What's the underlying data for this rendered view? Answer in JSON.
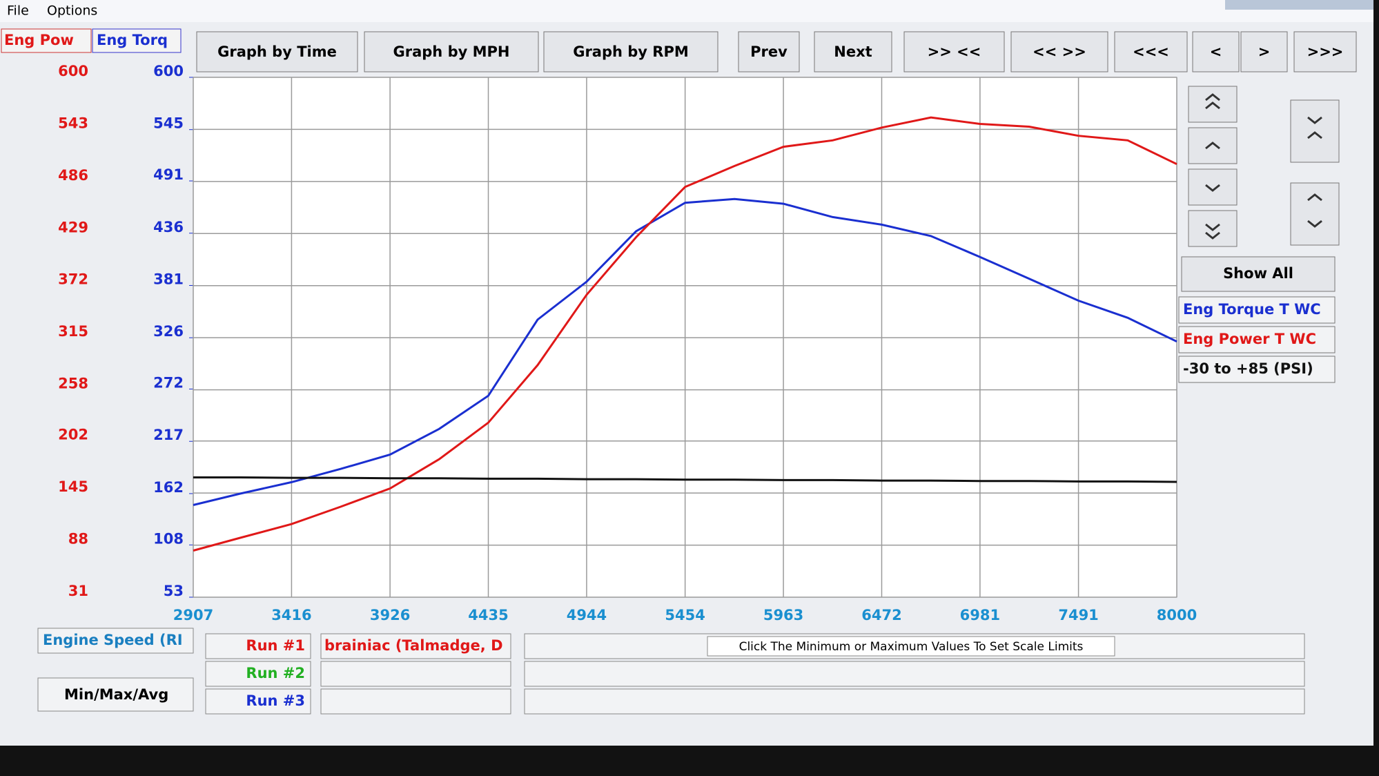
{
  "menu": [
    "File",
    "Options"
  ],
  "toolbar": [
    "Graph by Time",
    "Graph by MPH",
    "Graph by RPM",
    "Prev",
    "Next",
    ">> <<",
    "<< >>",
    "<<<",
    "<",
    ">",
    ">>>"
  ],
  "side_panel": {
    "button": "Show All"
  },
  "bottom": {
    "x_channel": "Engine Speed (RI",
    "summary_button": "Min/Max/Avg",
    "runs": [
      {
        "label": "Run #1",
        "color": "#e01818",
        "file": "brainiac (Talmadge, D"
      },
      {
        "label": "Run #2",
        "color": "#22b022"
      },
      {
        "label": "Run #3",
        "color": "#1a2fd0"
      }
    ],
    "status": "Click The Minimum or Maximum Values To Set Scale Limits"
  },
  "chart_data": {
    "type": "line",
    "y_label": "Eng Pow",
    "y2_label": "Eng Torq",
    "x": [
      2907,
      3150,
      3416,
      3670,
      3926,
      4180,
      4435,
      4690,
      4944,
      5200,
      5454,
      5710,
      5963,
      6218,
      6472,
      6727,
      6981,
      7236,
      7491,
      7746,
      8000
    ],
    "xlim": [
      2907,
      8000
    ],
    "xticks": [
      2907,
      3416,
      3926,
      4435,
      4944,
      5454,
      5963,
      6472,
      6981,
      7491,
      8000
    ],
    "ylim": [
      31,
      600
    ],
    "yticks": [
      31,
      88,
      145,
      202,
      258,
      315,
      372,
      429,
      486,
      543,
      600
    ],
    "y2lim": [
      53,
      600
    ],
    "y2ticks": [
      53,
      108,
      162,
      217,
      272,
      326,
      381,
      436,
      491,
      545,
      600
    ],
    "y3lim": [
      -30,
      85
    ],
    "grid": true,
    "series": [
      {
        "name": "Eng Torque T WC",
        "color": "#1a2fd0",
        "axis": "y2",
        "values": [
          150,
          162,
          174,
          188,
          203,
          230,
          265,
          345,
          385,
          438,
          468,
          472,
          467,
          453,
          445,
          433,
          411,
          388,
          365,
          347,
          322
        ]
      },
      {
        "name": "Eng Power T WC",
        "color": "#e01818",
        "values": [
          82,
          96,
          111,
          130,
          150,
          182,
          222,
          285,
          362,
          425,
          480,
          503,
          524,
          531,
          545,
          556,
          549,
          546,
          536,
          531,
          505
        ]
      },
      {
        "name": "-30 to +85 (PSI)",
        "color": "#111111",
        "axis": "y3",
        "values": [
          -3.5,
          -3.5,
          -3.6,
          -3.6,
          -3.7,
          -3.7,
          -3.8,
          -3.8,
          -3.9,
          -3.9,
          -4.0,
          -4.0,
          -4.1,
          -4.1,
          -4.2,
          -4.2,
          -4.3,
          -4.3,
          -4.4,
          -4.4,
          -4.5
        ]
      }
    ]
  }
}
